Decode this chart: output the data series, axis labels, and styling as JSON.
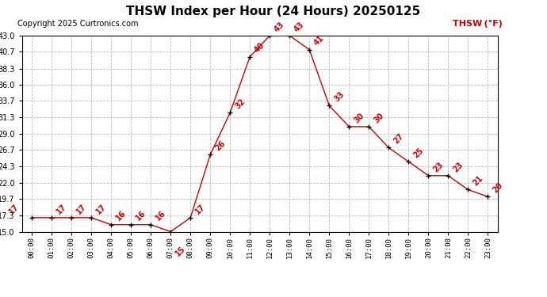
{
  "title": "THSW Index per Hour (24 Hours) 20250125",
  "copyright": "Copyright 2025 Curtronics.com",
  "legend_label": "THSW (°F)",
  "hours": [
    "00:00",
    "01:00",
    "02:00",
    "03:00",
    "04:00",
    "05:00",
    "06:00",
    "07:00",
    "08:00",
    "09:00",
    "10:00",
    "11:00",
    "12:00",
    "13:00",
    "14:00",
    "15:00",
    "16:00",
    "17:00",
    "18:00",
    "19:00",
    "20:00",
    "21:00",
    "22:00",
    "23:00"
  ],
  "values": [
    17,
    17,
    17,
    17,
    16,
    16,
    16,
    15,
    17,
    26,
    32,
    40,
    43,
    43,
    41,
    33,
    30,
    30,
    27,
    25,
    23,
    23,
    21,
    20
  ],
  "line_color": "#cc0000",
  "marker_color": "#000000",
  "label_color": "#cc0000",
  "background_color": "#ffffff",
  "grid_color": "#bbbbbb",
  "ylim": [
    15.0,
    43.0
  ],
  "yticks": [
    15.0,
    17.3,
    19.7,
    22.0,
    24.3,
    26.7,
    29.0,
    31.3,
    33.7,
    36.0,
    38.3,
    40.7,
    43.0
  ],
  "title_fontsize": 11,
  "label_fontsize": 7,
  "copyright_fontsize": 7,
  "legend_fontsize": 8
}
